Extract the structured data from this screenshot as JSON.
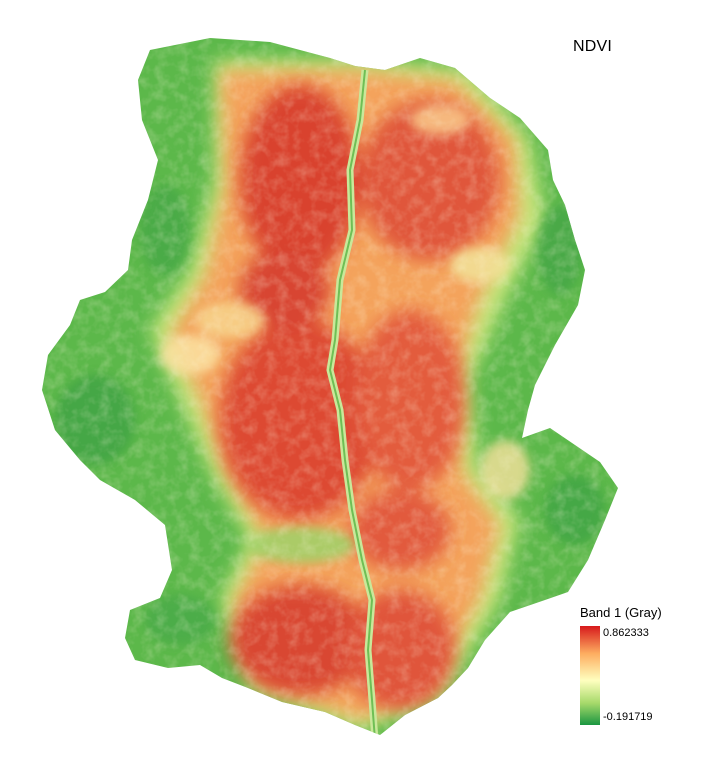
{
  "map": {
    "title": "NDVI"
  },
  "legend": {
    "title": "Band 1 (Gray)",
    "max_label": "0.862333",
    "min_label": "-0.191719",
    "max_value": 0.862333,
    "min_value": -0.191719,
    "ramp_colors": {
      "high": "#d7191c",
      "upper_mid": "#fdae61",
      "mid": "#ffffbf",
      "lower_mid": "#a6d96a",
      "low": "#1a9641"
    }
  },
  "colors": {
    "background": "#ffffff",
    "water_channel": "#c9e89a"
  }
}
